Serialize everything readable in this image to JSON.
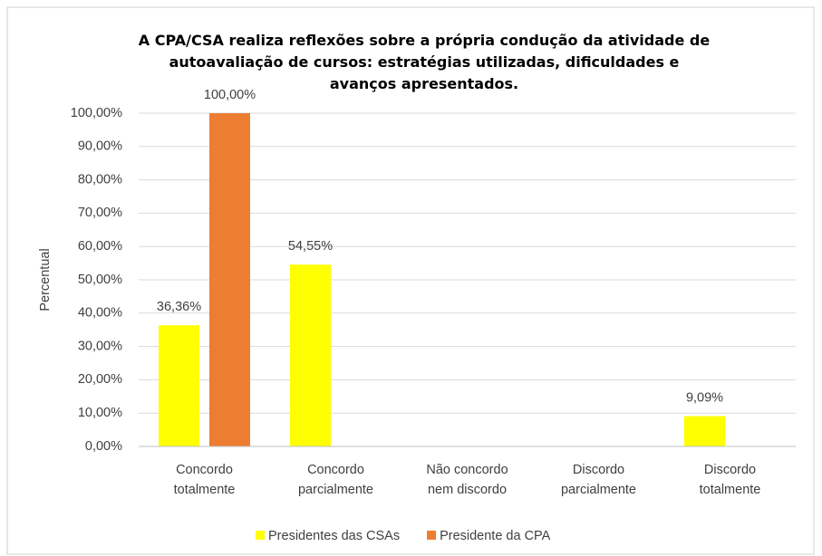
{
  "chart_data": {
    "type": "bar",
    "title": "A CPA/CSA realiza reflexões sobre a própria condução da atividade de autoavaliação de cursos: estratégias utilizadas, dificuldades e avanços apresentados.",
    "y_label": "Percentual",
    "categories": [
      "Concordo totalmente",
      "Concordo parcialmente",
      "Não concordo nem discordo",
      "Discordo parcialmente",
      "Discordo totalmente"
    ],
    "series": [
      {
        "name": "Presidentes das CSAs",
        "color": "#ffff00",
        "values": [
          36.36,
          54.55,
          null,
          null,
          9.09
        ],
        "value_labels": [
          "36,36%",
          "54,55%",
          null,
          null,
          "9,09%"
        ]
      },
      {
        "name": "Presidente da CPA",
        "color": "#ed7d31",
        "values": [
          100,
          null,
          null,
          null,
          null
        ],
        "value_labels": [
          "100,00%",
          null,
          null,
          null,
          null
        ]
      }
    ],
    "ylim": [
      0,
      100
    ],
    "yticks": [
      {
        "value": 0,
        "label": "0,00%"
      },
      {
        "value": 10,
        "label": "10,00%"
      },
      {
        "value": 20,
        "label": "20,00%"
      },
      {
        "value": 30,
        "label": "30,00%"
      },
      {
        "value": 40,
        "label": "40,00%"
      },
      {
        "value": 50,
        "label": "50,00%"
      },
      {
        "value": 60,
        "label": "60,00%"
      },
      {
        "value": 70,
        "label": "70,00%"
      },
      {
        "value": 80,
        "label": "80,00%"
      },
      {
        "value": 90,
        "label": "90,00%"
      },
      {
        "value": 100,
        "label": "100,00%"
      }
    ],
    "grid": true,
    "legend": "bottom"
  }
}
